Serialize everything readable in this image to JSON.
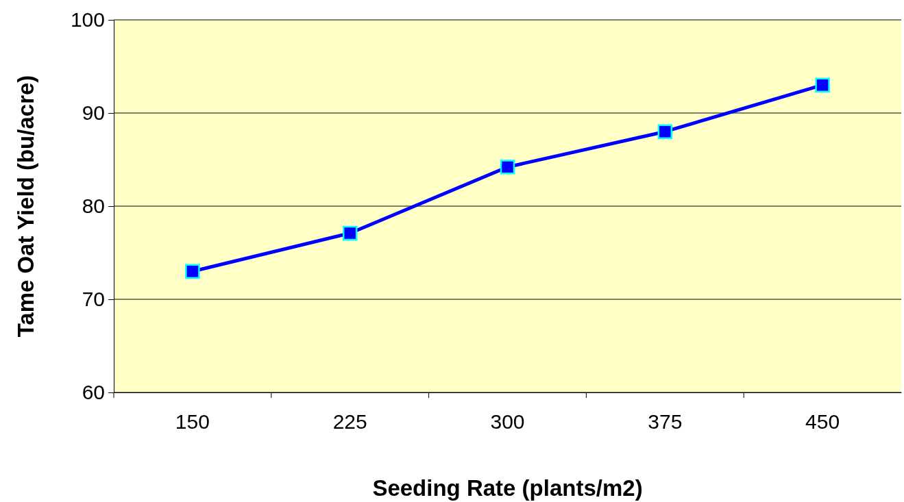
{
  "chart_data": {
    "type": "line",
    "xlabel": "Seeding Rate (plants/m2)",
    "ylabel": "Tame Oat Yield (bu/acre)",
    "categories": [
      "150",
      "225",
      "300",
      "375",
      "450"
    ],
    "series": [
      {
        "color": "#0000ff",
        "values": [
          73,
          77.1,
          84.2,
          88,
          93
        ]
      }
    ],
    "ylim": [
      60,
      100
    ],
    "yticks": [
      60,
      70,
      80,
      90,
      100
    ],
    "grid": "y",
    "marker": "square",
    "line_style": "solid",
    "legend": false
  }
}
